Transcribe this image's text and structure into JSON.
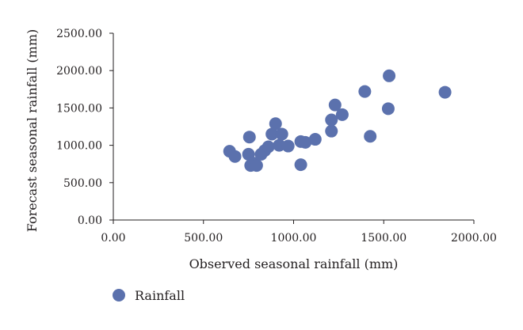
{
  "chart_data": {
    "type": "scatter",
    "title": "",
    "xlabel": "Observed seasonal rainfall (mm)",
    "ylabel": "Forecast seasonal rainfall (mm)",
    "xlim": [
      0,
      2000
    ],
    "ylim": [
      0,
      2500
    ],
    "xticks": [
      "0.00",
      "500.00",
      "1000.00",
      "1500.00",
      "2000.00"
    ],
    "yticks": [
      "0.00",
      "500.00",
      "1000.00",
      "1500.00",
      "2000.00",
      "2500.00"
    ],
    "grid": false,
    "legend_position": "bottom-left",
    "series": [
      {
        "name": "Rainfall",
        "color": "#5b71ad",
        "points": [
          {
            "x": 645,
            "y": 920
          },
          {
            "x": 675,
            "y": 850
          },
          {
            "x": 750,
            "y": 880
          },
          {
            "x": 755,
            "y": 1110
          },
          {
            "x": 762,
            "y": 730
          },
          {
            "x": 780,
            "y": 760
          },
          {
            "x": 795,
            "y": 730
          },
          {
            "x": 820,
            "y": 880
          },
          {
            "x": 840,
            "y": 930
          },
          {
            "x": 860,
            "y": 980
          },
          {
            "x": 880,
            "y": 1150
          },
          {
            "x": 900,
            "y": 1290
          },
          {
            "x": 920,
            "y": 1000
          },
          {
            "x": 935,
            "y": 1150
          },
          {
            "x": 970,
            "y": 990
          },
          {
            "x": 1040,
            "y": 1050
          },
          {
            "x": 1040,
            "y": 740
          },
          {
            "x": 1065,
            "y": 1040
          },
          {
            "x": 1120,
            "y": 1080
          },
          {
            "x": 1210,
            "y": 1190
          },
          {
            "x": 1210,
            "y": 1340
          },
          {
            "x": 1230,
            "y": 1540
          },
          {
            "x": 1270,
            "y": 1410
          },
          {
            "x": 1395,
            "y": 1720
          },
          {
            "x": 1425,
            "y": 1120
          },
          {
            "x": 1525,
            "y": 1490
          },
          {
            "x": 1530,
            "y": 1930
          },
          {
            "x": 1840,
            "y": 1710
          }
        ]
      }
    ]
  }
}
